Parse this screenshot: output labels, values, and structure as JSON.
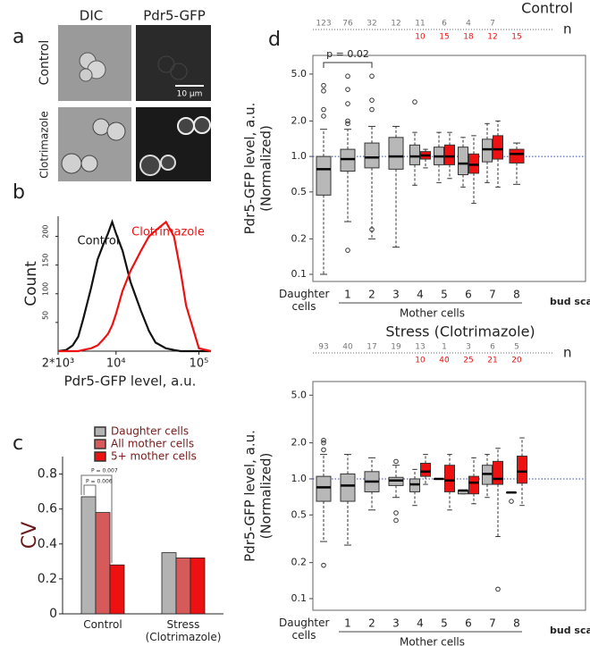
{
  "panel_labels": [
    "a",
    "b",
    "c",
    "d"
  ],
  "images": {
    "columns": [
      "DIC",
      "Pdr5-GFP"
    ],
    "rows": [
      "Control",
      "Clotrimazole"
    ],
    "scale_bar": "10 µm"
  },
  "chart_data": [
    {
      "type": "line",
      "xlog": true,
      "xlabel": "Pdr5-GFP  level, a.u.",
      "ylabel": "Count",
      "x": [
        2000,
        2500,
        3000,
        3500,
        4000,
        5000,
        6000,
        7000,
        8000,
        9000,
        10000,
        12000,
        15000,
        20000,
        25000,
        30000,
        40000,
        50000,
        60000,
        70000,
        100000,
        140000
      ],
      "series": [
        {
          "name": "Control",
          "color": "#111111",
          "values": [
            0,
            2,
            10,
            25,
            55,
            110,
            160,
            185,
            205,
            225,
            205,
            175,
            120,
            70,
            35,
            15,
            5,
            2,
            0,
            0,
            0,
            0
          ]
        },
        {
          "name": "Clotrimazole",
          "color": "#ee1111",
          "values": [
            0,
            0,
            0,
            0,
            2,
            5,
            10,
            20,
            30,
            45,
            65,
            105,
            140,
            175,
            200,
            210,
            225,
            200,
            140,
            80,
            5,
            0
          ]
        }
      ],
      "xlim": [
        2000,
        140000
      ],
      "xticks": [
        {
          "value": 2000,
          "label": "2*10³"
        },
        {
          "value": 10000,
          "label": "10⁴"
        },
        {
          "value": 100000,
          "label": "10⁵"
        }
      ],
      "ylim": [
        0,
        235
      ],
      "yticks": [
        50,
        100,
        150,
        200
      ]
    },
    {
      "type": "bar",
      "ylabel": "CV",
      "categories": [
        "Control",
        "Stress (Clotrimazole)"
      ],
      "series": [
        {
          "name": "Daughter cells",
          "color": "#b3b3b3",
          "values": [
            0.67,
            0.35
          ]
        },
        {
          "name": "All mother cells",
          "color": "#d65a5a",
          "values": [
            0.58,
            0.32
          ]
        },
        {
          "name": "5+ mother cells",
          "color": "#ee1111",
          "values": [
            0.28,
            0.32
          ]
        }
      ],
      "annotations": [
        "P = 0.007",
        "P = 0.006"
      ],
      "ylim": [
        0,
        0.9
      ],
      "yticks": [
        0,
        0.2,
        0.4,
        0.6,
        0.8
      ]
    },
    {
      "type": "box",
      "title": "Control",
      "ylog": true,
      "ylabel": "Pdr5-GFP  level, a.u.",
      "ylabel2": "(Normalized)",
      "categories": [
        "Daughter cells",
        "1",
        "2",
        "3",
        "4",
        "5",
        "6",
        "7",
        "8"
      ],
      "group_label": "Mother cells",
      "xlabel": "bud scars",
      "n_label": "n",
      "annotations": [
        "p = 0.02"
      ],
      "hline": 1,
      "ylim": [
        0.087,
        7.2
      ],
      "yticks": [
        0.1,
        0.2,
        0.5,
        {
          "value": 1,
          "label": "1.0"
        },
        {
          "value": 2,
          "label": "2.0"
        },
        {
          "value": 5,
          "label": "5.0"
        }
      ],
      "boxes": [
        {
          "x": 0,
          "color": "#b8b8b8",
          "q1": 0.47,
          "median": 0.78,
          "q3": 1.0,
          "whislo": 0.1,
          "whishi": 1.7,
          "outliers": [
            2.2,
            2.5,
            3.6,
            4.0
          ],
          "n": 123
        },
        {
          "x": 1,
          "color": "#b8b8b8",
          "q1": 0.75,
          "median": 0.95,
          "q3": 1.15,
          "whislo": 0.28,
          "whishi": 1.7,
          "outliers": [
            0.16,
            1.9,
            2.0,
            2.8,
            3.7,
            4.8
          ],
          "n": 76
        },
        {
          "x": 2,
          "color": "#b8b8b8",
          "q1": 0.8,
          "median": 0.98,
          "q3": 1.3,
          "whislo": 0.2,
          "whishi": 1.8,
          "outliers": [
            0.24,
            2.5,
            3.0,
            4.8
          ],
          "n": 32
        },
        {
          "x": 3,
          "color": "#b8b8b8",
          "q1": 0.78,
          "median": 1.0,
          "q3": 1.45,
          "whislo": 0.17,
          "whishi": 1.8,
          "outliers": [],
          "n": 12
        },
        {
          "x": 4,
          "color": "#b8b8b8",
          "q1": 0.85,
          "median": 1.0,
          "q3": 1.25,
          "whislo": 0.57,
          "whishi": 1.6,
          "outliers": [
            2.9
          ],
          "n": 11
        },
        {
          "x": 4,
          "color": "#ee1111",
          "q1": 0.95,
          "median": 1.02,
          "q3": 1.1,
          "whislo": 0.8,
          "whishi": 1.15,
          "outliers": [],
          "n": 10
        },
        {
          "x": 5,
          "color": "#b8b8b8",
          "q1": 0.85,
          "median": 1.0,
          "q3": 1.2,
          "whislo": 0.6,
          "whishi": 1.6,
          "outliers": [],
          "n": 6
        },
        {
          "x": 5,
          "color": "#ee1111",
          "q1": 0.85,
          "median": 1.0,
          "q3": 1.25,
          "whislo": 0.65,
          "whishi": 1.6,
          "outliers": [],
          "n": 15
        },
        {
          "x": 6,
          "color": "#b8b8b8",
          "q1": 0.7,
          "median": 0.87,
          "q3": 1.2,
          "whislo": 0.55,
          "whishi": 1.45,
          "outliers": [],
          "n": 4
        },
        {
          "x": 6,
          "color": "#ee1111",
          "q1": 0.72,
          "median": 0.85,
          "q3": 1.05,
          "whislo": 0.4,
          "whishi": 1.5,
          "outliers": [],
          "n": 18
        },
        {
          "x": 7,
          "color": "#b8b8b8",
          "q1": 0.9,
          "median": 1.15,
          "q3": 1.4,
          "whislo": 0.6,
          "whishi": 1.9,
          "outliers": [],
          "n": 7
        },
        {
          "x": 7,
          "color": "#ee1111",
          "q1": 0.95,
          "median": 1.15,
          "q3": 1.5,
          "whislo": 0.55,
          "whishi": 2.0,
          "outliers": [],
          "n": 12
        },
        {
          "x": 8,
          "color": "#ee1111",
          "q1": 0.88,
          "median": 1.05,
          "q3": 1.15,
          "whislo": 0.58,
          "whishi": 1.3,
          "outliers": [],
          "n": 15
        }
      ]
    },
    {
      "type": "box",
      "title": "Stress (Clotrimazole)",
      "ylog": true,
      "ylabel": "Pdr5-GFP  level, a.u.",
      "ylabel2": "(Normalized)",
      "categories": [
        "Daughter cells",
        "1",
        "2",
        "3",
        "4",
        "5",
        "6",
        "7",
        "8"
      ],
      "group_label": "Mother cells",
      "xlabel": "bud scars",
      "n_label": "n",
      "hline": 1,
      "ylim": [
        0.08,
        6.5
      ],
      "yticks": [
        0.1,
        0.2,
        0.5,
        {
          "value": 1,
          "label": "1.0"
        },
        {
          "value": 2,
          "label": "2.0"
        },
        {
          "value": 5,
          "label": "5.0"
        }
      ],
      "boxes": [
        {
          "x": 0,
          "color": "#b8b8b8",
          "q1": 0.65,
          "median": 0.85,
          "q3": 1.05,
          "whislo": 0.3,
          "whishi": 1.6,
          "outliers": [
            0.19,
            1.75,
            2.0,
            2.1
          ],
          "n": 93
        },
        {
          "x": 1,
          "color": "#b8b8b8",
          "q1": 0.65,
          "median": 0.88,
          "q3": 1.1,
          "whislo": 0.28,
          "whishi": 1.6,
          "outliers": [],
          "n": 40
        },
        {
          "x": 2,
          "color": "#b8b8b8",
          "q1": 0.78,
          "median": 0.95,
          "q3": 1.15,
          "whislo": 0.55,
          "whishi": 1.5,
          "outliers": [],
          "n": 17
        },
        {
          "x": 3,
          "color": "#b8b8b8",
          "q1": 0.88,
          "median": 0.97,
          "q3": 1.03,
          "whislo": 0.7,
          "whishi": 1.3,
          "outliers": [
            0.45,
            0.52,
            1.4
          ],
          "n": 19
        },
        {
          "x": 4,
          "color": "#b8b8b8",
          "q1": 0.78,
          "median": 0.9,
          "q3": 1.0,
          "whislo": 0.6,
          "whishi": 1.2,
          "outliers": [],
          "n": 13
        },
        {
          "x": 4,
          "color": "#ee1111",
          "q1": 1.05,
          "median": 1.15,
          "q3": 1.35,
          "whislo": 0.9,
          "whishi": 1.6,
          "outliers": [],
          "n": 10
        },
        {
          "x": 5,
          "color": "#b8b8b8",
          "q1": 1.0,
          "median": 1.0,
          "q3": 1.0,
          "whislo": 1.0,
          "whishi": 1.0,
          "outliers": [],
          "n": 1
        },
        {
          "x": 5,
          "color": "#ee1111",
          "q1": 0.78,
          "median": 0.97,
          "q3": 1.3,
          "whislo": 0.55,
          "whishi": 1.6,
          "outliers": [],
          "n": 40
        },
        {
          "x": 6,
          "color": "#b8b8b8",
          "q1": 0.75,
          "median": 0.8,
          "q3": 0.8,
          "whislo": 0.75,
          "whishi": 0.8,
          "outliers": [],
          "n": 3
        },
        {
          "x": 6,
          "color": "#ee1111",
          "q1": 0.75,
          "median": 0.93,
          "q3": 1.05,
          "whislo": 0.62,
          "whishi": 1.5,
          "outliers": [],
          "n": 25
        },
        {
          "x": 7,
          "color": "#b8b8b8",
          "q1": 0.9,
          "median": 1.1,
          "q3": 1.3,
          "whislo": 0.7,
          "whishi": 1.6,
          "outliers": [],
          "n": 6
        },
        {
          "x": 7,
          "color": "#ee1111",
          "q1": 0.9,
          "median": 1.0,
          "q3": 1.4,
          "whislo": 0.33,
          "whishi": 1.8,
          "outliers": [
            0.12
          ],
          "n": 21
        },
        {
          "x": 8,
          "color": "#b8b8b8",
          "q1": 0.77,
          "median": 0.77,
          "q3": 0.77,
          "whislo": 0.77,
          "whishi": 0.77,
          "outliers": [
            0.65
          ],
          "n": 5
        },
        {
          "x": 8,
          "color": "#ee1111",
          "q1": 0.92,
          "median": 1.15,
          "q3": 1.55,
          "whislo": 0.6,
          "whishi": 2.2,
          "outliers": [],
          "n": 20
        }
      ]
    }
  ]
}
